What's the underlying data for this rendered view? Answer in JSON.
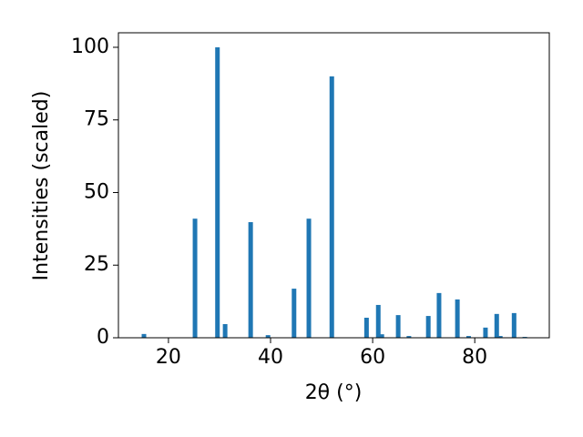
{
  "chart_data": {
    "type": "bar",
    "xlabel": "2θ (°)",
    "ylabel": "Intensities (scaled)",
    "x": [
      15.2,
      25.2,
      29.6,
      31.1,
      36.1,
      39.5,
      44.6,
      47.5,
      52.0,
      58.8,
      61.1,
      61.8,
      65.0,
      67.1,
      70.9,
      73.0,
      76.6,
      78.8,
      82.1,
      84.3,
      85.0,
      87.7,
      89.8
    ],
    "values": [
      1.3,
      41,
      100,
      4.7,
      39.8,
      0.9,
      16.9,
      41,
      90,
      6.9,
      11.3,
      1.2,
      7.8,
      0.6,
      7.5,
      15.4,
      13.2,
      0.6,
      3.5,
      8.2,
      0.6,
      8.5,
      0.3
    ],
    "color": "#1f77b4",
    "xlim": [
      10.2,
      94.6
    ],
    "ylim": [
      0,
      105
    ],
    "xticks": [
      20,
      40,
      60,
      80
    ],
    "yticks": [
      0,
      25,
      50,
      75,
      100
    ]
  }
}
